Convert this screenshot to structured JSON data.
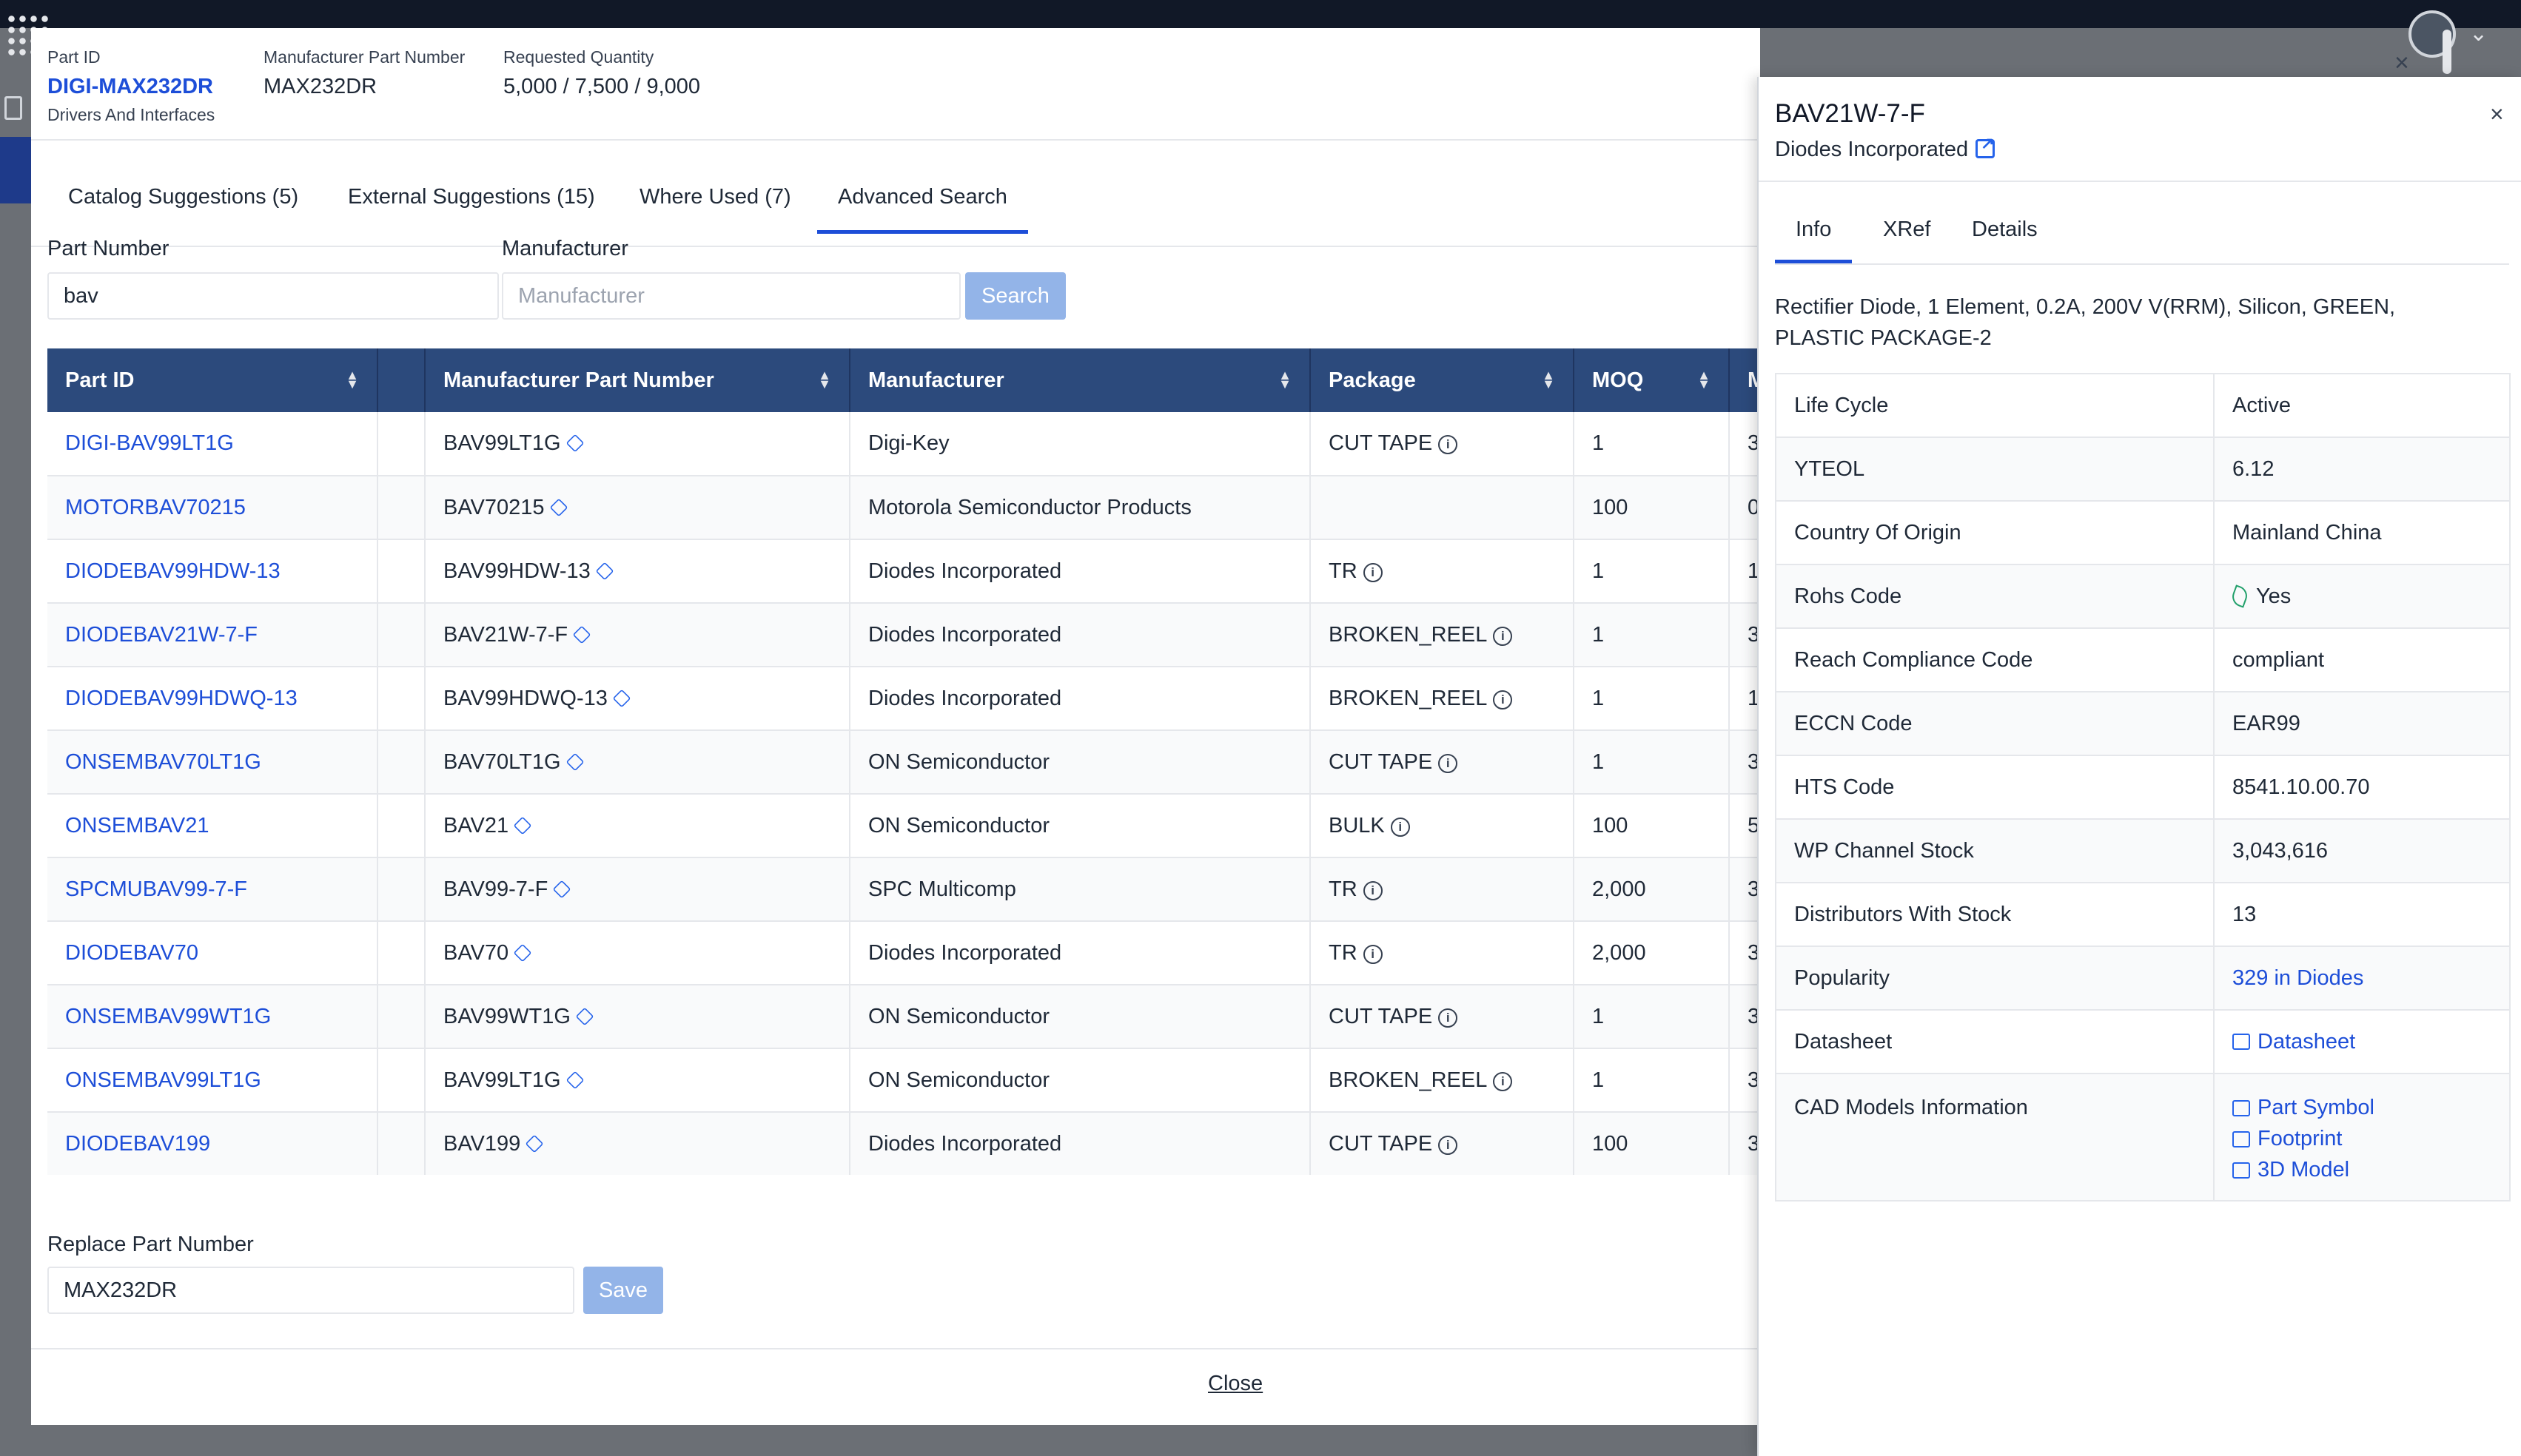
{
  "header": {
    "part_id_label": "Part ID",
    "part_id": "DIGI-MAX232DR",
    "category": "Drivers And Interfaces",
    "mpn_label": "Manufacturer Part Number",
    "mpn": "MAX232DR",
    "qty_label": "Requested Quantity",
    "qty": "5,000 / 7,500 / 9,000",
    "close_glyph": "×"
  },
  "tabs": [
    "Catalog Suggestions (5)",
    "External Suggestions (15)",
    "Where Used (7)",
    "Advanced Search"
  ],
  "search": {
    "part_label": "Part Number",
    "part_value": "bav",
    "mfr_label": "Manufacturer",
    "mfr_placeholder": "Manufacturer",
    "button": "Search"
  },
  "table": {
    "columns": [
      "Part ID",
      "",
      "Manufacturer Part Number",
      "Manufacturer",
      "Package",
      "MOQ",
      "M"
    ],
    "rows": [
      {
        "pid": "DIGI-BAV99LT1G",
        "mpn": "BAV99LT1G",
        "mfr": "Digi-Key",
        "pkg": "CUT TAPE",
        "moq": "1",
        "x": "3"
      },
      {
        "pid": "MOTORBAV70215",
        "mpn": "BAV70215",
        "mfr": "Motorola Semiconductor Products",
        "pkg": "",
        "moq": "100",
        "x": "0"
      },
      {
        "pid": "DIODEBAV99HDW-13",
        "mpn": "BAV99HDW-13",
        "mfr": "Diodes Incorporated",
        "pkg": "TR",
        "moq": "1",
        "x": "1"
      },
      {
        "pid": "DIODEBAV21W-7-F",
        "mpn": "BAV21W-7-F",
        "mfr": "Diodes Incorporated",
        "pkg": "BROKEN_REEL",
        "moq": "1",
        "x": "3"
      },
      {
        "pid": "DIODEBAV99HDWQ-13",
        "mpn": "BAV99HDWQ-13",
        "mfr": "Diodes Incorporated",
        "pkg": "BROKEN_REEL",
        "moq": "1",
        "x": "1"
      },
      {
        "pid": "ONSEMBAV70LT1G",
        "mpn": "BAV70LT1G",
        "mfr": "ON Semiconductor",
        "pkg": "CUT TAPE",
        "moq": "1",
        "x": "3"
      },
      {
        "pid": "ONSEMBAV21",
        "mpn": "BAV21",
        "mfr": "ON Semiconductor",
        "pkg": "BULK",
        "moq": "100",
        "x": "5"
      },
      {
        "pid": "SPCMUBAV99-7-F",
        "mpn": "BAV99-7-F",
        "mfr": "SPC Multicomp",
        "pkg": "TR",
        "moq": "2,000",
        "x": "3"
      },
      {
        "pid": "DIODEBAV70",
        "mpn": "BAV70",
        "mfr": "Diodes Incorporated",
        "pkg": "TR",
        "moq": "2,000",
        "x": "3"
      },
      {
        "pid": "ONSEMBAV99WT1G",
        "mpn": "BAV99WT1G",
        "mfr": "ON Semiconductor",
        "pkg": "CUT TAPE",
        "moq": "1",
        "x": "3"
      },
      {
        "pid": "ONSEMBAV99LT1G",
        "mpn": "BAV99LT1G",
        "mfr": "ON Semiconductor",
        "pkg": "BROKEN_REEL",
        "moq": "1",
        "x": "3"
      },
      {
        "pid": "DIODEBAV199",
        "mpn": "BAV199",
        "mfr": "Diodes Incorporated",
        "pkg": "CUT TAPE",
        "moq": "100",
        "x": "3"
      }
    ]
  },
  "replace": {
    "label": "Replace Part Number",
    "value": "MAX232DR",
    "button": "Save"
  },
  "footer": {
    "close": "Close"
  },
  "panel": {
    "title": "BAV21W-7-F",
    "manufacturer": "Diodes Incorporated",
    "close_glyph": "×",
    "tabs": [
      "Info",
      "XRef",
      "Details"
    ],
    "description": "Rectifier Diode, 1 Element, 0.2A, 200V V(RRM), Silicon, GREEN, PLASTIC PACKAGE-2",
    "rows": [
      {
        "k": "Life Cycle",
        "v": "Active"
      },
      {
        "k": "YTEOL",
        "v": "6.12"
      },
      {
        "k": "Country Of Origin",
        "v": "Mainland China"
      },
      {
        "k": "Rohs Code",
        "v": "Yes"
      },
      {
        "k": "Reach Compliance Code",
        "v": "compliant"
      },
      {
        "k": "ECCN Code",
        "v": "EAR99"
      },
      {
        "k": "HTS Code",
        "v": "8541.10.00.70"
      },
      {
        "k": "WP Channel Stock",
        "v": "3,043,616"
      },
      {
        "k": "Distributors With Stock",
        "v": "13"
      },
      {
        "k": "Popularity",
        "v": "329 in Diodes"
      },
      {
        "k": "Datasheet",
        "v": "Datasheet"
      }
    ],
    "cad_label": "CAD Models Information",
    "cad_links": [
      "Part Symbol",
      "Footprint",
      "3D Model"
    ]
  }
}
